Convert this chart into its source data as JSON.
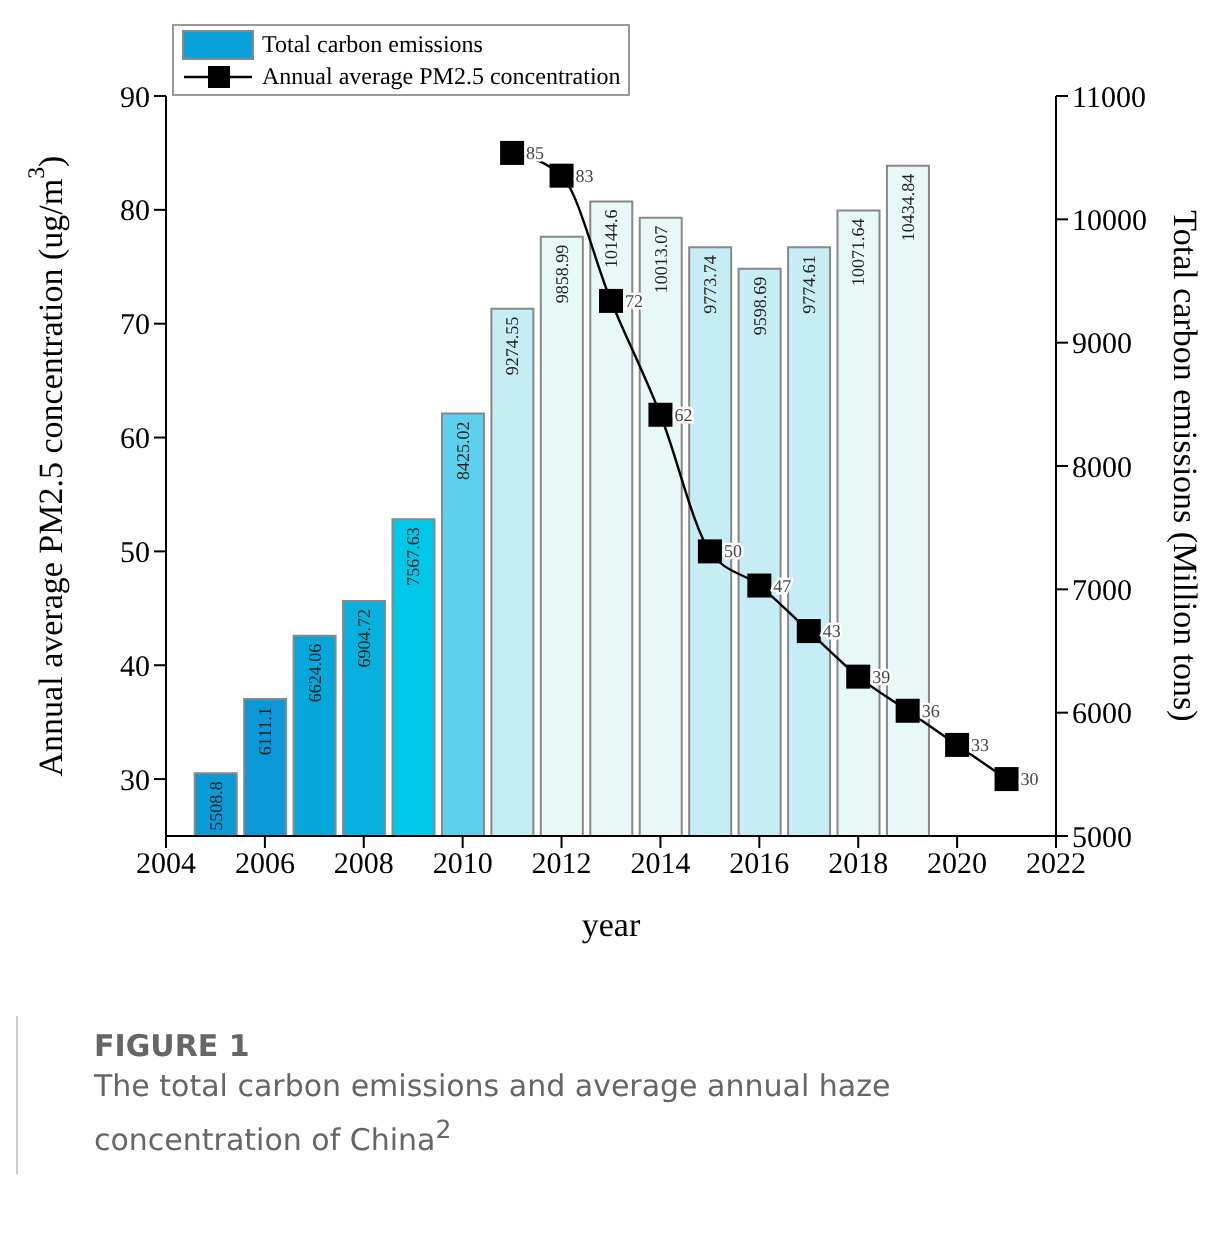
{
  "chart_data": {
    "type": "bar",
    "title": "FIGURE 1",
    "subtitle": "The total carbon emissions and average annual haze concentration of China$^{2}$",
    "xlabel": "year",
    "ylabel": "Annual average PM2.5 concentration (ug/m$^{3}$)",
    "y2label": "Total carbon emissions (Million tons)",
    "x": [
      2005,
      2006,
      2007,
      2008,
      2009,
      2010,
      2011,
      2012,
      2013,
      2014,
      2015,
      2016,
      2017,
      2018,
      2019
    ],
    "series": [
      {
        "name": "Total carbon emissions",
        "axis": "y2",
        "color": "#0aa0da",
        "colors": [
          "#0a9ad6",
          "#0a98d8",
          "#06a8dc",
          "#08b0e0",
          "#00c8e8",
          "#5cd0ec",
          "#c6ecf4",
          "#e8f8f6",
          "#e8f8f6",
          "#e8f8f6",
          "#c6ecf4",
          "#c6ecf4",
          "#c6ecf4",
          "#e8f8f6",
          "#e8f8f6"
        ],
        "values": [
          5508.8,
          6111.1,
          6624.06,
          6904.72,
          7567.63,
          8425.02,
          9274.55,
          9858.99,
          10144.6,
          10013.07,
          9773.74,
          9598.69,
          9774.61,
          10071.64,
          10434.84
        ]
      },
      {
        "name": "Annual average PM2.5 concentration",
        "type": "line",
        "color": "#000000",
        "x": [
          2011,
          2012,
          2013,
          2014,
          2015,
          2016,
          2017,
          2018,
          2019,
          2020,
          2021
        ],
        "values": [
          85,
          83,
          72,
          62,
          50,
          47,
          43,
          39,
          36,
          33,
          30
        ]
      }
    ],
    "xlim": [
      2004,
      2022
    ],
    "xticks": [
      2004,
      2006,
      2008,
      2010,
      2012,
      2014,
      2016,
      2018,
      2020,
      2022
    ],
    "ylim": [
      25,
      90
    ],
    "yticks": [
      30,
      40,
      50,
      60,
      70,
      80,
      90
    ],
    "y2lim": [
      5000,
      11000
    ],
    "y2ticks": [
      5000,
      6000,
      7000,
      8000,
      9000,
      10000,
      11000
    ],
    "data_labels": true,
    "legend": "top left",
    "marker": "square",
    "line_style": "solid"
  }
}
